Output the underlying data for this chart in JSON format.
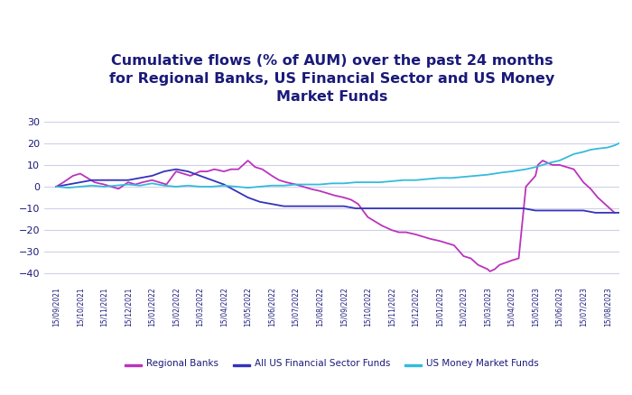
{
  "title": "Cumulative flows (% of AUM) over the past 24 months\nfor Regional Banks, US Financial Sector and US Money\nMarket Funds",
  "title_fontsize": 11.5,
  "title_fontweight": "bold",
  "title_color": "#1a1a7a",
  "ylim": [
    -45,
    35
  ],
  "yticks": [
    -40,
    -30,
    -20,
    -10,
    0,
    10,
    20,
    30
  ],
  "background_color": "#ffffff",
  "grid_color": "#d0d0e8",
  "legend_labels": [
    "Regional Banks",
    "All US Financial Sector Funds",
    "US Money Market Funds"
  ],
  "rb_color": "#bb33bb",
  "fin_color": "#3333bb",
  "mm_color": "#33bbdd",
  "x_labels": [
    "15/09/2021",
    "15/10/2021",
    "15/11/2021",
    "15/12/2021",
    "15/01/2022",
    "15/02/2022",
    "15/03/2022",
    "15/04/2022",
    "15/05/2022",
    "15/06/2022",
    "15/07/2022",
    "15/08/2022",
    "15/09/2022",
    "15/10/2022",
    "15/11/2022",
    "15/12/2022",
    "15/01/2023",
    "15/02/2023",
    "15/03/2023",
    "15/04/2023",
    "15/05/2023",
    "15/06/2023",
    "15/07/2023",
    "15/08/2023"
  ],
  "rb_x": [
    0,
    0.3,
    0.7,
    1.0,
    1.3,
    1.6,
    2.0,
    2.3,
    2.6,
    3.0,
    3.3,
    3.6,
    4.0,
    4.3,
    4.6,
    5.0,
    5.3,
    5.6,
    6.0,
    6.3,
    6.6,
    7.0,
    7.3,
    7.6,
    8.0,
    8.3,
    8.6,
    9.0,
    9.3,
    9.6,
    10.0,
    10.3,
    10.6,
    11.0,
    11.3,
    11.6,
    12.0,
    12.3,
    12.6,
    13.0,
    13.3,
    13.6,
    14.0,
    14.3,
    14.6,
    15.0,
    15.3,
    15.6,
    16.0,
    16.3,
    16.6,
    17.0,
    17.3,
    17.6,
    18.0,
    18.1,
    18.3,
    18.5,
    19.0,
    19.3,
    19.6,
    20.0,
    20.1,
    20.3,
    20.5,
    20.7,
    21.0,
    21.3,
    21.6,
    22.0,
    22.3,
    22.6,
    23.0,
    23.3
  ],
  "rb_y": [
    0,
    2,
    5,
    6,
    4,
    2,
    1,
    0,
    -1,
    2,
    1,
    2,
    3,
    2,
    1,
    7,
    6,
    5,
    7,
    7,
    8,
    7,
    8,
    8,
    12,
    9,
    8,
    5,
    3,
    2,
    1,
    0,
    -1,
    -2,
    -3,
    -4,
    -5,
    -6,
    -8,
    -14,
    -16,
    -18,
    -20,
    -21,
    -21,
    -22,
    -23,
    -24,
    -25,
    -26,
    -27,
    -32,
    -33,
    -36,
    -38,
    -39,
    -38,
    -36,
    -34,
    -33,
    0,
    5,
    10,
    12,
    11,
    10,
    10,
    9,
    8,
    2,
    -1,
    -5,
    -9,
    -12
  ],
  "fin_x": [
    0,
    0.5,
    1.0,
    1.5,
    2.0,
    2.5,
    3.0,
    3.5,
    4.0,
    4.5,
    5.0,
    5.5,
    6.0,
    6.5,
    7.0,
    7.5,
    8.0,
    8.5,
    9.0,
    9.5,
    10.0,
    10.5,
    11.0,
    11.5,
    12.0,
    12.5,
    13.0,
    13.5,
    14.0,
    14.5,
    15.0,
    15.5,
    16.0,
    16.5,
    17.0,
    17.5,
    18.0,
    18.5,
    19.0,
    19.5,
    20.0,
    20.5,
    21.0,
    21.5,
    22.0,
    22.5,
    23.0,
    23.5
  ],
  "fin_y": [
    0,
    1,
    2,
    3,
    3,
    3,
    3,
    4,
    5,
    7,
    8,
    7,
    5,
    3,
    1,
    -2,
    -5,
    -7,
    -8,
    -9,
    -9,
    -9,
    -9,
    -9,
    -9,
    -10,
    -10,
    -10,
    -10,
    -10,
    -10,
    -10,
    -10,
    -10,
    -10,
    -10,
    -10,
    -10,
    -10,
    -10,
    -11,
    -11,
    -11,
    -11,
    -11,
    -12,
    -12,
    -12
  ],
  "mm_x": [
    0,
    0.5,
    1.0,
    1.5,
    2.0,
    2.5,
    3.0,
    3.5,
    4.0,
    4.5,
    5.0,
    5.5,
    6.0,
    6.5,
    7.0,
    7.5,
    8.0,
    8.5,
    9.0,
    9.5,
    10.0,
    10.5,
    11.0,
    11.5,
    12.0,
    12.5,
    13.0,
    13.5,
    14.0,
    14.5,
    15.0,
    15.5,
    16.0,
    16.5,
    17.0,
    17.5,
    18.0,
    18.3,
    18.6,
    19.0,
    19.3,
    19.6,
    20.0,
    20.3,
    20.6,
    21.0,
    21.3,
    21.6,
    22.0,
    22.3,
    22.6,
    23.0,
    23.3,
    23.5
  ],
  "mm_y": [
    0,
    -0.5,
    0,
    0.5,
    0,
    0.5,
    1,
    0.5,
    1.5,
    0.5,
    0,
    0.5,
    0,
    0,
    0.5,
    0,
    -0.5,
    0,
    0.5,
    0.5,
    1,
    1,
    1,
    1.5,
    1.5,
    2,
    2,
    2,
    2.5,
    3,
    3,
    3.5,
    4,
    4,
    4.5,
    5,
    5.5,
    6,
    6.5,
    7,
    7.5,
    8,
    9,
    10,
    11,
    12,
    13.5,
    15,
    16,
    17,
    17.5,
    18,
    19,
    20
  ]
}
